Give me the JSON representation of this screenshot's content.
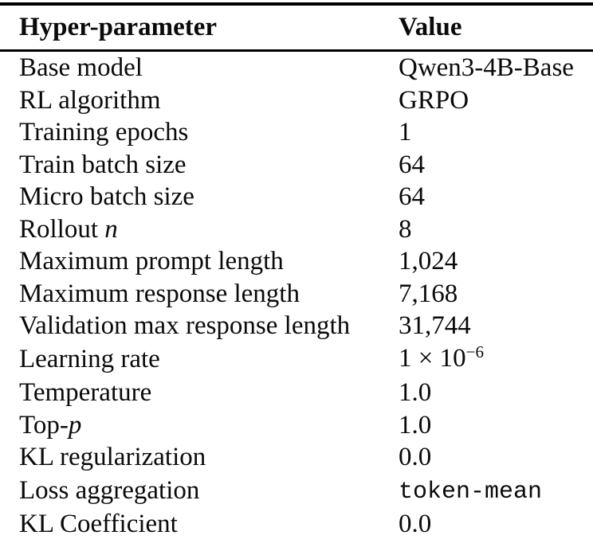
{
  "colors": {
    "background": "#ffffff",
    "text": "#0a0a0a",
    "rule": "#000000"
  },
  "table": {
    "columns": [
      "Hyper-parameter",
      "Value"
    ],
    "rows": [
      {
        "param": [
          {
            "t": "Base model",
            "style": "normal"
          }
        ],
        "value": [
          {
            "t": "Qwen3-4B-Base",
            "style": "normal"
          }
        ]
      },
      {
        "param": [
          {
            "t": "RL algorithm",
            "style": "normal"
          }
        ],
        "value": [
          {
            "t": "GRPO",
            "style": "normal"
          }
        ]
      },
      {
        "param": [
          {
            "t": "Training epochs",
            "style": "normal"
          }
        ],
        "value": [
          {
            "t": "1",
            "style": "normal"
          }
        ]
      },
      {
        "param": [
          {
            "t": "Train batch size",
            "style": "normal"
          }
        ],
        "value": [
          {
            "t": "64",
            "style": "normal"
          }
        ]
      },
      {
        "param": [
          {
            "t": "Micro batch size",
            "style": "normal"
          }
        ],
        "value": [
          {
            "t": "64",
            "style": "normal"
          }
        ]
      },
      {
        "param": [
          {
            "t": "Rollout ",
            "style": "normal"
          },
          {
            "t": "n",
            "style": "italic"
          }
        ],
        "value": [
          {
            "t": "8",
            "style": "normal"
          }
        ]
      },
      {
        "param": [
          {
            "t": "Maximum prompt length",
            "style": "normal"
          }
        ],
        "value": [
          {
            "t": "1,024",
            "style": "normal"
          }
        ]
      },
      {
        "param": [
          {
            "t": "Maximum response length",
            "style": "normal"
          }
        ],
        "value": [
          {
            "t": "7,168",
            "style": "normal"
          }
        ]
      },
      {
        "param": [
          {
            "t": "Validation max response length",
            "style": "normal"
          }
        ],
        "value": [
          {
            "t": "31,744",
            "style": "normal"
          }
        ]
      },
      {
        "param": [
          {
            "t": "Learning rate",
            "style": "normal"
          }
        ],
        "value": [
          {
            "t": "1 × 10",
            "style": "normal"
          },
          {
            "t": "−6",
            "style": "sup"
          }
        ]
      },
      {
        "param": [
          {
            "t": "Temperature",
            "style": "normal"
          }
        ],
        "value": [
          {
            "t": "1.0",
            "style": "normal"
          }
        ]
      },
      {
        "param": [
          {
            "t": "Top-",
            "style": "normal"
          },
          {
            "t": "p",
            "style": "italic"
          }
        ],
        "value": [
          {
            "t": "1.0",
            "style": "normal"
          }
        ]
      },
      {
        "param": [
          {
            "t": "KL regularization",
            "style": "normal"
          }
        ],
        "value": [
          {
            "t": "0.0",
            "style": "normal"
          }
        ]
      },
      {
        "param": [
          {
            "t": "Loss aggregation",
            "style": "normal"
          }
        ],
        "value": [
          {
            "t": "token-mean",
            "style": "mono"
          }
        ]
      },
      {
        "param": [
          {
            "t": "KL Coefficient",
            "style": "normal"
          }
        ],
        "value": [
          {
            "t": "0.0",
            "style": "normal"
          }
        ]
      }
    ]
  }
}
